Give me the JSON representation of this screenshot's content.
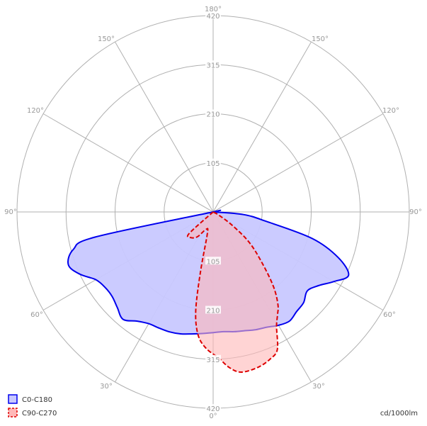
{
  "chart_data": {
    "type": "polar",
    "radial_max": 420,
    "radial_ticks": [
      105,
      210,
      315,
      420
    ],
    "angle_labels": {
      "top": "180°",
      "upper_left": "150°",
      "upper_right": "150°",
      "mid_upper_left": "120°",
      "mid_upper_right": "120°",
      "left": "90°",
      "right": "90°",
      "lower_left": "60°",
      "lower_right": "60°",
      "bottom_left": "30°",
      "bottom_right": "30°",
      "bottom": "0°"
    },
    "unit": "cd/1000lm",
    "legend_position": "bottom-left",
    "series": [
      {
        "name": "C0-C180",
        "color": "#0000ee",
        "fill": "#c8c8ff",
        "dash": false,
        "points": [
          {
            "angle": -90,
            "r": 0
          },
          {
            "angle": -80,
            "r": 4
          },
          {
            "angle": -78,
            "r": 258
          },
          {
            "angle": -75,
            "r": 310
          },
          {
            "angle": -70,
            "r": 330
          },
          {
            "angle": -65,
            "r": 315
          },
          {
            "angle": -60,
            "r": 290
          },
          {
            "angle": -55,
            "r": 282
          },
          {
            "angle": -50,
            "r": 282
          },
          {
            "angle": -45,
            "r": 290
          },
          {
            "angle": -40,
            "r": 300
          },
          {
            "angle": -35,
            "r": 285
          },
          {
            "angle": -30,
            "r": 276
          },
          {
            "angle": -25,
            "r": 274
          },
          {
            "angle": -20,
            "r": 273
          },
          {
            "angle": -15,
            "r": 270
          },
          {
            "angle": -10,
            "r": 265
          },
          {
            "angle": -5,
            "r": 261
          },
          {
            "angle": 0,
            "r": 258
          },
          {
            "angle": 5,
            "r": 257
          },
          {
            "angle": 10,
            "r": 260
          },
          {
            "angle": 15,
            "r": 263
          },
          {
            "angle": 20,
            "r": 268
          },
          {
            "angle": 25,
            "r": 272
          },
          {
            "angle": 30,
            "r": 280
          },
          {
            "angle": 35,
            "r": 285
          },
          {
            "angle": 40,
            "r": 278
          },
          {
            "angle": 45,
            "r": 274
          },
          {
            "angle": 50,
            "r": 263
          },
          {
            "angle": 55,
            "r": 275
          },
          {
            "angle": 60,
            "r": 298
          },
          {
            "angle": 65,
            "r": 320
          },
          {
            "angle": 70,
            "r": 285
          },
          {
            "angle": 75,
            "r": 220
          },
          {
            "angle": 80,
            "r": 115
          },
          {
            "angle": 85,
            "r": 65
          },
          {
            "angle": 90,
            "r": 0
          }
        ]
      },
      {
        "name": "C90-C270",
        "color": "#dd0000",
        "fill": "#ffb8b8",
        "dash": true,
        "points": [
          {
            "angle": 0,
            "r": 0
          },
          {
            "angle": -48,
            "r": 70
          },
          {
            "angle": -40,
            "r": 72
          },
          {
            "angle": -32,
            "r": 62
          },
          {
            "angle": -22,
            "r": 40
          },
          {
            "angle": -15,
            "r": 48
          },
          {
            "angle": -12,
            "r": 130
          },
          {
            "angle": -10,
            "r": 215
          },
          {
            "angle": -7,
            "r": 265
          },
          {
            "angle": -3,
            "r": 292
          },
          {
            "angle": 2,
            "r": 312
          },
          {
            "angle": 6,
            "r": 335
          },
          {
            "angle": 10,
            "r": 348
          },
          {
            "angle": 16,
            "r": 346
          },
          {
            "angle": 21,
            "r": 338
          },
          {
            "angle": 25,
            "r": 325
          },
          {
            "angle": 29,
            "r": 280
          },
          {
            "angle": 32,
            "r": 260
          },
          {
            "angle": 35,
            "r": 242
          },
          {
            "angle": 39,
            "r": 205
          },
          {
            "angle": 44,
            "r": 150
          },
          {
            "angle": 50,
            "r": 100
          },
          {
            "angle": 55,
            "r": 50
          },
          {
            "angle": 60,
            "r": 15
          },
          {
            "angle": 65,
            "r": 0
          }
        ]
      }
    ]
  }
}
